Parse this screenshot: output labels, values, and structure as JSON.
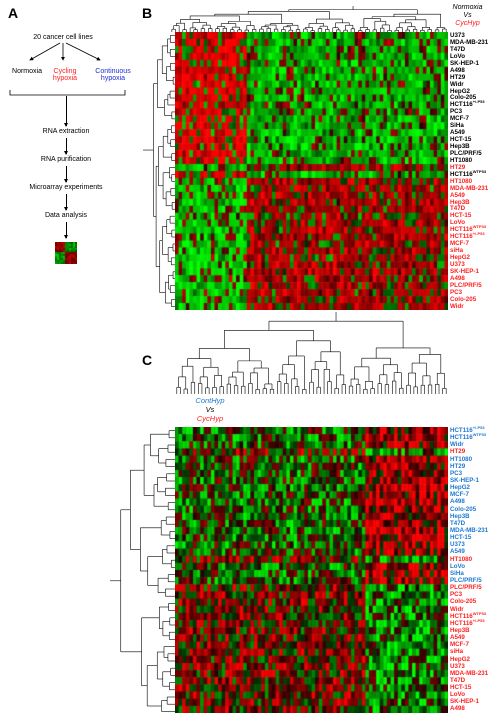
{
  "panels": {
    "a_label": "A",
    "b_label": "B",
    "c_label": "C"
  },
  "panel_a": {
    "lines": "20 cancer cell lines",
    "normoxia": "Normoxia",
    "cycling_1": "Cycling",
    "cycling_2": "hypoxia",
    "continuous_1": "Continuous",
    "continuous_2": "hypoxia",
    "step1": "RNA extraction",
    "step2": "RNA purification",
    "step3": "Microarray experiments",
    "step4": "Data analysis"
  },
  "panel_b": {
    "cmp_top": "Normoxia",
    "cmp_mid": "Vs",
    "cmp_bot": "CycHyp",
    "rows": [
      {
        "name": "U373",
        "sup": "",
        "group": "normoxia"
      },
      {
        "name": "MDA-MB-231",
        "sup": "",
        "group": "normoxia"
      },
      {
        "name": "T47D",
        "sup": "",
        "group": "normoxia"
      },
      {
        "name": "LoVo",
        "sup": "",
        "group": "normoxia"
      },
      {
        "name": "SK-HEP-1",
        "sup": "",
        "group": "normoxia"
      },
      {
        "name": "A498",
        "sup": "",
        "group": "normoxia"
      },
      {
        "name": "HT29",
        "sup": "",
        "group": "normoxia"
      },
      {
        "name": "Widr",
        "sup": "",
        "group": "normoxia"
      },
      {
        "name": "HepG2",
        "sup": "",
        "group": "normoxia"
      },
      {
        "name": "Colo-205",
        "sup": "",
        "group": "normoxia"
      },
      {
        "name": "HCT116",
        "sup": "+/-P53",
        "group": "normoxia"
      },
      {
        "name": "PC3",
        "sup": "",
        "group": "normoxia"
      },
      {
        "name": "MCF-7",
        "sup": "",
        "group": "normoxia"
      },
      {
        "name": "SiHa",
        "sup": "",
        "group": "normoxia"
      },
      {
        "name": "A549",
        "sup": "",
        "group": "normoxia"
      },
      {
        "name": "HCT-15",
        "sup": "",
        "group": "normoxia"
      },
      {
        "name": "Hep3B",
        "sup": "",
        "group": "normoxia"
      },
      {
        "name": "PLC/PRF/5",
        "sup": "",
        "group": "normoxia"
      },
      {
        "name": "HT1080",
        "sup": "",
        "group": "normoxia"
      },
      {
        "name": "HT29",
        "sup": "",
        "group": "cychyp"
      },
      {
        "name": "HCT116",
        "sup": "WTP53",
        "group": "normoxia"
      },
      {
        "name": "HT1080",
        "sup": "",
        "group": "cychyp"
      },
      {
        "name": "MDA-MB-231",
        "sup": "",
        "group": "cychyp"
      },
      {
        "name": "A549",
        "sup": "",
        "group": "cychyp"
      },
      {
        "name": "Hep3B",
        "sup": "",
        "group": "cychyp"
      },
      {
        "name": "T47D",
        "sup": "",
        "group": "cychyp"
      },
      {
        "name": "HCT-15",
        "sup": "",
        "group": "cychyp"
      },
      {
        "name": "LoVo",
        "sup": "",
        "group": "cychyp"
      },
      {
        "name": "HCT116",
        "sup": "WTP53",
        "group": "cychyp"
      },
      {
        "name": "HCT116",
        "sup": "+/-P53",
        "group": "cychyp"
      },
      {
        "name": "MCF-7",
        "sup": "",
        "group": "cychyp"
      },
      {
        "name": "siHa",
        "sup": "",
        "group": "cychyp"
      },
      {
        "name": "HepG2",
        "sup": "",
        "group": "cychyp"
      },
      {
        "name": "U373",
        "sup": "",
        "group": "cychyp"
      },
      {
        "name": "SK-HEP-1",
        "sup": "",
        "group": "cychyp"
      },
      {
        "name": "A498",
        "sup": "",
        "group": "cychyp"
      },
      {
        "name": "PLC/PRF/5",
        "sup": "",
        "group": "cychyp"
      },
      {
        "name": "PC3",
        "sup": "",
        "group": "cychyp"
      },
      {
        "name": "Colo-205",
        "sup": "",
        "group": "cychyp"
      },
      {
        "name": "Widr",
        "sup": "",
        "group": "cychyp"
      }
    ]
  },
  "panel_c": {
    "cmp_top": "ContHyp",
    "cmp_mid": "Vs",
    "cmp_bot": "CycHyp",
    "rows": [
      {
        "name": "HCT116",
        "sup": "+/-P53",
        "group": "conthyp"
      },
      {
        "name": "HCT116",
        "sup": "WTP53",
        "group": "conthyp"
      },
      {
        "name": "Widr",
        "sup": "",
        "group": "conthyp"
      },
      {
        "name": "HT29",
        "sup": "",
        "group": "cychyp"
      },
      {
        "name": "HT1080",
        "sup": "",
        "group": "conthyp"
      },
      {
        "name": "HT29",
        "sup": "",
        "group": "conthyp"
      },
      {
        "name": "PC3",
        "sup": "",
        "group": "conthyp"
      },
      {
        "name": "SK-HEP-1",
        "sup": "",
        "group": "conthyp"
      },
      {
        "name": "HepG2",
        "sup": "",
        "group": "conthyp"
      },
      {
        "name": "MCF-7",
        "sup": "",
        "group": "conthyp"
      },
      {
        "name": "A498",
        "sup": "",
        "group": "conthyp"
      },
      {
        "name": "Colo-205",
        "sup": "",
        "group": "conthyp"
      },
      {
        "name": "Hep3B",
        "sup": "",
        "group": "conthyp"
      },
      {
        "name": "T47D",
        "sup": "",
        "group": "conthyp"
      },
      {
        "name": "MDA-MB-231",
        "sup": "",
        "group": "conthyp"
      },
      {
        "name": "HCT-15",
        "sup": "",
        "group": "conthyp"
      },
      {
        "name": "U373",
        "sup": "",
        "group": "conthyp"
      },
      {
        "name": "A549",
        "sup": "",
        "group": "conthyp"
      },
      {
        "name": "HT1080",
        "sup": "",
        "group": "cychyp"
      },
      {
        "name": "LoVo",
        "sup": "",
        "group": "conthyp"
      },
      {
        "name": "SiHa",
        "sup": "",
        "group": "conthyp"
      },
      {
        "name": "PLC/PRF/5",
        "sup": "",
        "group": "conthyp"
      },
      {
        "name": "PLC/PRF/5",
        "sup": "",
        "group": "cychyp"
      },
      {
        "name": "PC3",
        "sup": "",
        "group": "cychyp"
      },
      {
        "name": "Colo-205",
        "sup": "",
        "group": "cychyp"
      },
      {
        "name": "Widr",
        "sup": "",
        "group": "cychyp"
      },
      {
        "name": "HCT116",
        "sup": "WTP53",
        "group": "cychyp"
      },
      {
        "name": "HCT116",
        "sup": "+/-P53",
        "group": "cychyp"
      },
      {
        "name": "Hep3B",
        "sup": "",
        "group": "cychyp"
      },
      {
        "name": "A549",
        "sup": "",
        "group": "cychyp"
      },
      {
        "name": "MCF-7",
        "sup": "",
        "group": "cychyp"
      },
      {
        "name": "siHa",
        "sup": "",
        "group": "cychyp"
      },
      {
        "name": "HepG2",
        "sup": "",
        "group": "cychyp"
      },
      {
        "name": "U373",
        "sup": "",
        "group": "cychyp"
      },
      {
        "name": "MDA-MB-231",
        "sup": "",
        "group": "cychyp"
      },
      {
        "name": "T47D",
        "sup": "",
        "group": "cychyp"
      },
      {
        "name": "HCT-15",
        "sup": "",
        "group": "cychyp"
      },
      {
        "name": "LoVo",
        "sup": "",
        "group": "cychyp"
      },
      {
        "name": "SK-HEP-1",
        "sup": "",
        "group": "cychyp"
      },
      {
        "name": "A498",
        "sup": "",
        "group": "cychyp"
      }
    ]
  },
  "colors": {
    "normoxia": "#000000",
    "cychyp": "#ff2020",
    "conthyp": "#1e78d0",
    "heat_red": "#ff0000",
    "heat_green": "#00ff00",
    "heat_black": "#000000"
  }
}
